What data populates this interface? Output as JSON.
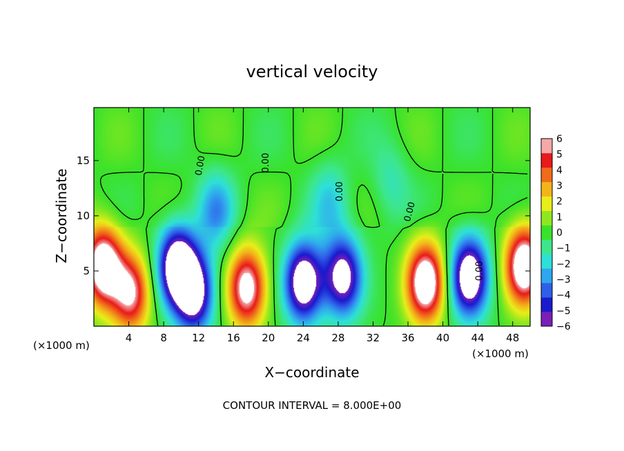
{
  "chart_data": {
    "type": "heatmap",
    "title": "vertical velocity",
    "xlabel": "X−coordinate",
    "ylabel": "Z−coordinate",
    "x_unit_left": "(×1000 m)",
    "x_unit_right": "(×1000 m)",
    "footer": "CONTOUR INTERVAL = 8.000E+00",
    "xlim": [
      0,
      50
    ],
    "ylim": [
      0,
      19.8
    ],
    "x_ticks": [
      4,
      8,
      12,
      16,
      20,
      24,
      28,
      32,
      36,
      40,
      44,
      48
    ],
    "y_ticks": [
      5,
      10,
      15
    ],
    "colorbar": {
      "range": [
        -6,
        6
      ],
      "ticks": [
        6,
        5,
        4,
        3,
        2,
        1,
        0,
        -1,
        -2,
        -3,
        -4,
        -5,
        -6
      ],
      "tick_labels": [
        "6",
        "5",
        "4",
        "3",
        "2",
        "1",
        "0",
        "−1",
        "−2",
        "−3",
        "−4",
        "−5",
        "−6"
      ],
      "colors": [
        "#7a1fb8",
        "#1a1acd",
        "#2f5fe8",
        "#2fa6ee",
        "#2ee0d8",
        "#3de68a",
        "#39e22a",
        "#8fe81f",
        "#e8ee1a",
        "#f3b41a",
        "#f06b1a",
        "#e81a1a",
        "#f6a8a8"
      ]
    },
    "contour_labels": [
      "0.00",
      "0.00",
      "0.00",
      "0.00",
      "0.00"
    ],
    "features": [
      {
        "x": 1.0,
        "z": 5.5,
        "value": 8
      },
      {
        "x": 4.2,
        "z": 3.0,
        "value": 6
      },
      {
        "x": 9.5,
        "z": 5.5,
        "value": -8
      },
      {
        "x": 11.5,
        "z": 3.0,
        "value": -7
      },
      {
        "x": 17.5,
        "z": 3.5,
        "value": 7
      },
      {
        "x": 24.0,
        "z": 4.0,
        "value": -8
      },
      {
        "x": 28.5,
        "z": 4.5,
        "value": -7
      },
      {
        "x": 38.0,
        "z": 4.0,
        "value": 8
      },
      {
        "x": 43.0,
        "z": 4.5,
        "value": -8
      },
      {
        "x": 49.3,
        "z": 5.5,
        "value": 8
      },
      {
        "x": 14.0,
        "z": 10.5,
        "value": -3
      },
      {
        "x": 27.0,
        "z": 11.5,
        "value": -2
      },
      {
        "x": 34.0,
        "z": 13.0,
        "value": -1.5
      }
    ]
  }
}
